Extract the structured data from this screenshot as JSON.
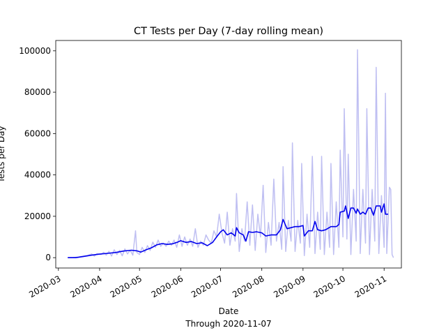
{
  "chart_data": {
    "type": "line",
    "title": "CT Tests per Day (7-day rolling mean)",
    "xlabel": "Date",
    "xlabel_sub": "Through 2020-11-07",
    "ylabel": "Tests per Day",
    "ylim": [
      -5000,
      105000
    ],
    "xlim": [
      "2020-02-28",
      "2020-11-14"
    ],
    "grid": false,
    "legend": "none",
    "x_ticks": [
      "2020-03",
      "2020-04",
      "2020-05",
      "2020-06",
      "2020-07",
      "2020-08",
      "2020-09",
      "2020-10",
      "2020-11"
    ],
    "y_ticks": [
      0,
      20000,
      40000,
      60000,
      80000,
      100000
    ],
    "series": [
      {
        "role": "daily",
        "color": "#bfbff2",
        "points": [
          [
            "2020-03-08",
            0
          ],
          [
            "2020-03-12",
            100
          ],
          [
            "2020-03-16",
            300
          ],
          [
            "2020-03-19",
            700
          ],
          [
            "2020-03-23",
            1100
          ],
          [
            "2020-03-26",
            1800
          ],
          [
            "2020-03-28",
            700
          ],
          [
            "2020-03-30",
            2000
          ],
          [
            "2020-04-02",
            1500
          ],
          [
            "2020-04-04",
            2600
          ],
          [
            "2020-04-06",
            1200
          ],
          [
            "2020-04-08",
            3100
          ],
          [
            "2020-04-10",
            800
          ],
          [
            "2020-04-12",
            3800
          ],
          [
            "2020-04-14",
            1500
          ],
          [
            "2020-04-16",
            3500
          ],
          [
            "2020-04-18",
            900
          ],
          [
            "2020-04-20",
            4200
          ],
          [
            "2020-04-22",
            1800
          ],
          [
            "2020-04-24",
            3600
          ],
          [
            "2020-04-26",
            1200
          ],
          [
            "2020-04-28",
            13000
          ],
          [
            "2020-04-29",
            2500
          ],
          [
            "2020-05-01",
            1500
          ],
          [
            "2020-05-03",
            5000
          ],
          [
            "2020-05-05",
            2500
          ],
          [
            "2020-05-07",
            5800
          ],
          [
            "2020-05-09",
            3500
          ],
          [
            "2020-05-11",
            7500
          ],
          [
            "2020-05-13",
            5000
          ],
          [
            "2020-05-15",
            8500
          ],
          [
            "2020-05-17",
            5500
          ],
          [
            "2020-05-19",
            7000
          ],
          [
            "2020-05-21",
            5500
          ],
          [
            "2020-05-23",
            8000
          ],
          [
            "2020-05-25",
            6000
          ],
          [
            "2020-05-27",
            8500
          ],
          [
            "2020-05-29",
            5000
          ],
          [
            "2020-05-31",
            11000
          ],
          [
            "2020-06-02",
            5500
          ],
          [
            "2020-06-04",
            10000
          ],
          [
            "2020-06-06",
            6000
          ],
          [
            "2020-06-08",
            9000
          ],
          [
            "2020-06-10",
            5500
          ],
          [
            "2020-06-12",
            14000
          ],
          [
            "2020-06-14",
            5000
          ],
          [
            "2020-06-16",
            8000
          ],
          [
            "2020-06-18",
            6000
          ],
          [
            "2020-06-20",
            11000
          ],
          [
            "2020-06-22",
            8500
          ],
          [
            "2020-06-24",
            7000
          ],
          [
            "2020-06-26",
            13000
          ],
          [
            "2020-06-28",
            10000
          ],
          [
            "2020-06-30",
            21000
          ],
          [
            "2020-07-02",
            12000
          ],
          [
            "2020-07-04",
            7000
          ],
          [
            "2020-07-06",
            22000
          ],
          [
            "2020-07-08",
            6000
          ],
          [
            "2020-07-10",
            14000
          ],
          [
            "2020-07-12",
            8000
          ],
          [
            "2020-07-13",
            31000
          ],
          [
            "2020-07-15",
            3000
          ],
          [
            "2020-07-17",
            14000
          ],
          [
            "2020-07-19",
            8000
          ],
          [
            "2020-07-21",
            27000
          ],
          [
            "2020-07-23",
            6000
          ],
          [
            "2020-07-25",
            25500
          ],
          [
            "2020-07-27",
            3500
          ],
          [
            "2020-07-29",
            21000
          ],
          [
            "2020-07-31",
            10000
          ],
          [
            "2020-08-02",
            35000
          ],
          [
            "2020-08-04",
            2500
          ],
          [
            "2020-08-06",
            17000
          ],
          [
            "2020-08-08",
            6000
          ],
          [
            "2020-08-10",
            38000
          ],
          [
            "2020-08-12",
            8000
          ],
          [
            "2020-08-14",
            17000
          ],
          [
            "2020-08-16",
            4000
          ],
          [
            "2020-08-17",
            44000
          ],
          [
            "2020-08-19",
            3000
          ],
          [
            "2020-08-21",
            18000
          ],
          [
            "2020-08-23",
            8000
          ],
          [
            "2020-08-24",
            55500
          ],
          [
            "2020-08-26",
            3000
          ],
          [
            "2020-08-28",
            18000
          ],
          [
            "2020-08-30",
            7000
          ],
          [
            "2020-08-31",
            45500
          ],
          [
            "2020-09-02",
            1000
          ],
          [
            "2020-09-04",
            21000
          ],
          [
            "2020-09-06",
            5000
          ],
          [
            "2020-09-08",
            49000
          ],
          [
            "2020-09-10",
            2000
          ],
          [
            "2020-09-12",
            22000
          ],
          [
            "2020-09-14",
            4000
          ],
          [
            "2020-09-15",
            49000
          ],
          [
            "2020-09-17",
            1500
          ],
          [
            "2020-09-19",
            22000
          ],
          [
            "2020-09-21",
            5000
          ],
          [
            "2020-09-22",
            45500
          ],
          [
            "2020-09-24",
            1500
          ],
          [
            "2020-09-26",
            27000
          ],
          [
            "2020-09-28",
            5000
          ],
          [
            "2020-09-29",
            52000
          ],
          [
            "2020-10-01",
            10000
          ],
          [
            "2020-10-02",
            72000
          ],
          [
            "2020-10-04",
            9000
          ],
          [
            "2020-10-05",
            50000
          ],
          [
            "2020-10-07",
            1500
          ],
          [
            "2020-10-09",
            33000
          ],
          [
            "2020-10-11",
            8000
          ],
          [
            "2020-10-12",
            100500
          ],
          [
            "2020-10-14",
            2000
          ],
          [
            "2020-10-16",
            33000
          ],
          [
            "2020-10-18",
            7000
          ],
          [
            "2020-10-19",
            72000
          ],
          [
            "2020-10-21",
            1500
          ],
          [
            "2020-10-23",
            33000
          ],
          [
            "2020-10-25",
            8000
          ],
          [
            "2020-10-26",
            92000
          ],
          [
            "2020-10-28",
            2000
          ],
          [
            "2020-10-30",
            30000
          ],
          [
            "2020-11-01",
            5000
          ],
          [
            "2020-11-02",
            79500
          ],
          [
            "2020-11-03",
            2000
          ],
          [
            "2020-11-05",
            34000
          ],
          [
            "2020-11-06",
            33000
          ],
          [
            "2020-11-07",
            1500
          ],
          [
            "2020-11-08",
            0
          ]
        ]
      },
      {
        "role": "rolling-mean",
        "color": "#0000ee",
        "points": [
          [
            "2020-03-08",
            0
          ],
          [
            "2020-03-14",
            0
          ],
          [
            "2020-03-20",
            600
          ],
          [
            "2020-03-26",
            1200
          ],
          [
            "2020-04-01",
            1700
          ],
          [
            "2020-04-07",
            2100
          ],
          [
            "2020-04-13",
            2500
          ],
          [
            "2020-04-19",
            3200
          ],
          [
            "2020-04-25",
            3600
          ],
          [
            "2020-04-29",
            3300
          ],
          [
            "2020-05-02",
            2700
          ],
          [
            "2020-05-06",
            3800
          ],
          [
            "2020-05-10",
            4800
          ],
          [
            "2020-05-14",
            6200
          ],
          [
            "2020-05-18",
            6800
          ],
          [
            "2020-05-22",
            6400
          ],
          [
            "2020-05-26",
            6700
          ],
          [
            "2020-05-30",
            7600
          ],
          [
            "2020-06-01",
            8200
          ],
          [
            "2020-06-05",
            7400
          ],
          [
            "2020-06-09",
            7800
          ],
          [
            "2020-06-13",
            6800
          ],
          [
            "2020-06-17",
            7200
          ],
          [
            "2020-06-21",
            5800
          ],
          [
            "2020-06-25",
            7400
          ],
          [
            "2020-06-28",
            10000
          ],
          [
            "2020-07-01",
            12500
          ],
          [
            "2020-07-03",
            13500
          ],
          [
            "2020-07-06",
            11000
          ],
          [
            "2020-07-09",
            12000
          ],
          [
            "2020-07-12",
            10500
          ],
          [
            "2020-07-13",
            14500
          ],
          [
            "2020-07-15",
            12000
          ],
          [
            "2020-07-18",
            11000
          ],
          [
            "2020-07-20",
            8000
          ],
          [
            "2020-07-22",
            12500
          ],
          [
            "2020-07-25",
            12200
          ],
          [
            "2020-07-28",
            12500
          ],
          [
            "2020-08-01",
            12000
          ],
          [
            "2020-08-04",
            10500
          ],
          [
            "2020-08-08",
            11000
          ],
          [
            "2020-08-12",
            11000
          ],
          [
            "2020-08-15",
            13500
          ],
          [
            "2020-08-17",
            18500
          ],
          [
            "2020-08-20",
            14000
          ],
          [
            "2020-08-23",
            14500
          ],
          [
            "2020-08-26",
            15000
          ],
          [
            "2020-08-29",
            15000
          ],
          [
            "2020-09-01",
            15500
          ],
          [
            "2020-09-02",
            10500
          ],
          [
            "2020-09-05",
            13000
          ],
          [
            "2020-09-08",
            13000
          ],
          [
            "2020-09-10",
            17500
          ],
          [
            "2020-09-12",
            13500
          ],
          [
            "2020-09-15",
            13000
          ],
          [
            "2020-09-18",
            13500
          ],
          [
            "2020-09-22",
            15000
          ],
          [
            "2020-09-26",
            15000
          ],
          [
            "2020-09-28",
            16000
          ],
          [
            "2020-09-29",
            22000
          ],
          [
            "2020-10-02",
            22500
          ],
          [
            "2020-10-03",
            25000
          ],
          [
            "2020-10-05",
            19000
          ],
          [
            "2020-10-07",
            24000
          ],
          [
            "2020-10-09",
            24000
          ],
          [
            "2020-10-11",
            21500
          ],
          [
            "2020-10-12",
            23500
          ],
          [
            "2020-10-14",
            21000
          ],
          [
            "2020-10-16",
            22000
          ],
          [
            "2020-10-18",
            21000
          ],
          [
            "2020-10-20",
            24000
          ],
          [
            "2020-10-22",
            24000
          ],
          [
            "2020-10-24",
            20500
          ],
          [
            "2020-10-26",
            25000
          ],
          [
            "2020-10-29",
            25000
          ],
          [
            "2020-10-30",
            22000
          ],
          [
            "2020-11-01",
            26000
          ],
          [
            "2020-11-02",
            21000
          ],
          [
            "2020-11-04",
            21000
          ]
        ]
      }
    ]
  }
}
